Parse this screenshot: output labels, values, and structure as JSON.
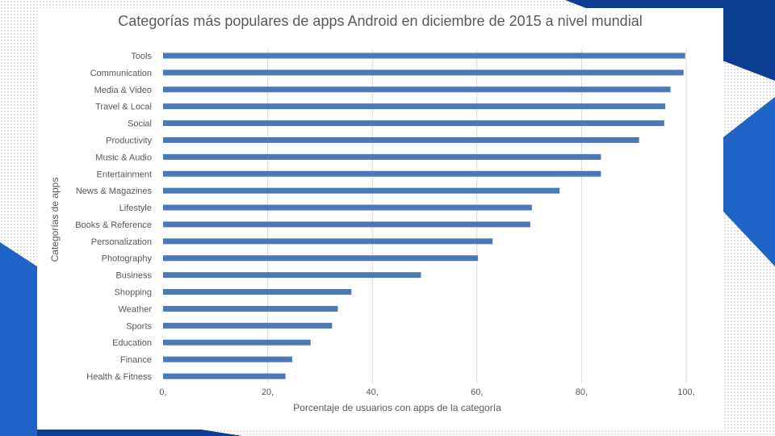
{
  "theme": {
    "accent_dark": "#0b3d91",
    "accent_mid": "#1f63c6",
    "accent_light": "#3f86e0",
    "bar_color": "#4a78b8",
    "grid_color": "#d9d9d9",
    "text_color": "#595959"
  },
  "chart_data": {
    "type": "bar",
    "orientation": "horizontal",
    "title": "Categorías más populares de apps Android en diciembre de 2015 a nivel mundial",
    "xlabel": "Porcentaje de usuarios con apps de la categoría",
    "ylabel": "Categorías de apps",
    "xlim": [
      0,
      100
    ],
    "xticks": [
      0,
      20,
      40,
      60,
      80,
      100
    ],
    "xtick_labels": [
      "0,",
      "20,",
      "40,",
      "60,",
      "80,",
      "100,"
    ],
    "grid": "vertical",
    "legend": "none",
    "categories": [
      "Tools",
      "Communication",
      "Media & Video",
      "Travel & Local",
      "Social",
      "Productivity",
      "Music & Audio",
      "Entertainment",
      "News & Magazines",
      "Lifestyle",
      "Books & Reference",
      "Personalization",
      "Photography",
      "Business",
      "Shopping",
      "Weather",
      "Sports",
      "Education",
      "Finance",
      "Health & Fitness"
    ],
    "values": [
      99.8,
      99.5,
      97,
      96,
      95.8,
      91,
      83.7,
      83.7,
      75.8,
      70.5,
      70.2,
      63,
      60.2,
      49.3,
      36,
      33.4,
      32.3,
      28.2,
      24.7,
      23.4
    ]
  }
}
